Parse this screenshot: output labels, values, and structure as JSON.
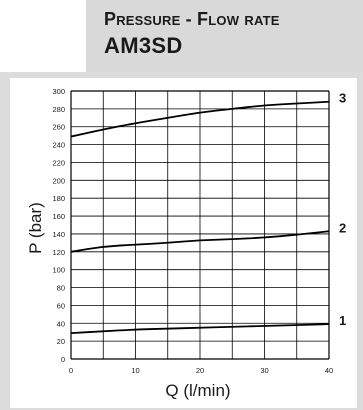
{
  "header": {
    "title": "Pressure - Flow rate",
    "model": "AM3SD"
  },
  "colors": {
    "header_band": "#d9d9d9",
    "panel_bg": "#dcdcdc",
    "grid": "#000000",
    "curve": "#000000"
  },
  "chart_data": {
    "type": "line",
    "title": "",
    "xlabel": "Q (l/min)",
    "ylabel": "P (bar)",
    "xlim": [
      0,
      40
    ],
    "ylim": [
      0,
      300
    ],
    "xticks": [
      0,
      10,
      20,
      30,
      40
    ],
    "yticks": [
      0,
      20,
      40,
      60,
      80,
      100,
      120,
      140,
      160,
      180,
      200,
      220,
      240,
      260,
      280,
      300
    ],
    "grid": true,
    "series": [
      {
        "name": "1",
        "x": [
          0,
          5,
          10,
          15,
          20,
          25,
          30,
          35,
          40
        ],
        "y": [
          29,
          31,
          33,
          34,
          35,
          36,
          37,
          38,
          39
        ]
      },
      {
        "name": "2",
        "x": [
          0,
          5,
          10,
          15,
          20,
          25,
          30,
          35,
          40
        ],
        "y": [
          120,
          126,
          128,
          130,
          133,
          134,
          136,
          139,
          143
        ]
      },
      {
        "name": "3",
        "x": [
          0,
          5,
          10,
          15,
          20,
          25,
          30,
          35,
          40
        ],
        "y": [
          249,
          257,
          264,
          270,
          276,
          280,
          284,
          286,
          288
        ]
      }
    ]
  }
}
